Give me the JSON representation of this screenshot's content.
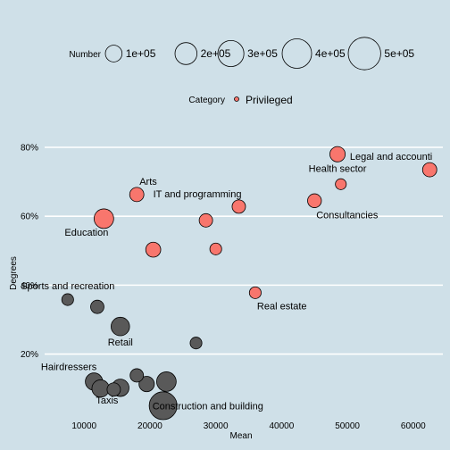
{
  "legends": {
    "size": {
      "title": "Number",
      "entries": [
        {
          "label": "1e+05",
          "value": 100000
        },
        {
          "label": "2e+05",
          "value": 200000
        },
        {
          "label": "3e+05",
          "value": 300000
        },
        {
          "label": "4e+05",
          "value": 400000
        },
        {
          "label": "5e+05",
          "value": 500000
        }
      ]
    },
    "category": {
      "title": "Category",
      "entries": [
        {
          "label": "Privileged",
          "color": "#f8766d"
        }
      ]
    }
  },
  "colors": {
    "background": "#cfe0e8",
    "gridline": "#ffffff",
    "privileged": "#f8766d",
    "other": "#595959",
    "outline": "#000000"
  },
  "chart_data": {
    "type": "scatter",
    "title": "",
    "xlabel": "Mean",
    "ylabel": "Degrees",
    "xlim": [
      4000,
      64500
    ],
    "ylim": [
      0.02,
      0.87
    ],
    "x_ticks": [
      {
        "value": 10000,
        "label": "10000"
      },
      {
        "value": 20000,
        "label": "20000"
      },
      {
        "value": 30000,
        "label": "30000"
      },
      {
        "value": 40000,
        "label": "40000"
      },
      {
        "value": 50000,
        "label": "50000"
      },
      {
        "value": 60000,
        "label": "60000"
      }
    ],
    "y_ticks": [
      {
        "value": 0.2,
        "label": "20%"
      },
      {
        "value": 0.4,
        "label": "40%"
      },
      {
        "value": 0.6,
        "label": "60%"
      },
      {
        "value": 0.8,
        "label": "80%"
      }
    ],
    "grid": "horizontal",
    "legend_position": "top",
    "points": [
      {
        "x": 62500,
        "y": 0.735,
        "size": 65000,
        "privileged": true,
        "label": "Legal and accounti",
        "label_pos": "above-left"
      },
      {
        "x": 48500,
        "y": 0.78,
        "size": 80000,
        "privileged": true,
        "label": "Health sector",
        "label_pos": "below"
      },
      {
        "x": 49000,
        "y": 0.693,
        "size": 30000,
        "privileged": true,
        "label": "",
        "label_pos": ""
      },
      {
        "x": 45000,
        "y": 0.645,
        "size": 60000,
        "privileged": true,
        "label": "Consultancies",
        "label_pos": "below-right"
      },
      {
        "x": 33500,
        "y": 0.628,
        "size": 55000,
        "privileged": true,
        "label": "IT and programming",
        "label_pos": "above-left"
      },
      {
        "x": 28500,
        "y": 0.588,
        "size": 55000,
        "privileged": true,
        "label": "",
        "label_pos": ""
      },
      {
        "x": 18000,
        "y": 0.663,
        "size": 65000,
        "privileged": true,
        "label": "Arts",
        "label_pos": "above-right"
      },
      {
        "x": 13000,
        "y": 0.593,
        "size": 150000,
        "privileged": true,
        "label": "Education",
        "label_pos": "below-left"
      },
      {
        "x": 20500,
        "y": 0.503,
        "size": 75000,
        "privileged": true,
        "label": "",
        "label_pos": ""
      },
      {
        "x": 30000,
        "y": 0.505,
        "size": 38000,
        "privileged": true,
        "label": "",
        "label_pos": ""
      },
      {
        "x": 36000,
        "y": 0.378,
        "size": 38000,
        "privileged": true,
        "label": "Real estate",
        "label_pos": "below-right"
      },
      {
        "x": 7500,
        "y": 0.358,
        "size": 38000,
        "privileged": false,
        "label": "Sports and recreation",
        "label_pos": "above"
      },
      {
        "x": 12000,
        "y": 0.337,
        "size": 55000,
        "privileged": false,
        "label": "",
        "label_pos": ""
      },
      {
        "x": 15500,
        "y": 0.28,
        "size": 130000,
        "privileged": false,
        "label": "Retail",
        "label_pos": "below"
      },
      {
        "x": 27000,
        "y": 0.232,
        "size": 38000,
        "privileged": false,
        "label": "",
        "label_pos": ""
      },
      {
        "x": 11500,
        "y": 0.12,
        "size": 110000,
        "privileged": false,
        "label": "Hairdressers",
        "label_pos": "above-left"
      },
      {
        "x": 12500,
        "y": 0.1,
        "size": 110000,
        "privileged": false,
        "label": "",
        "label_pos": ""
      },
      {
        "x": 14500,
        "y": 0.097,
        "size": 55000,
        "privileged": false,
        "label": "Taxis",
        "label_pos": "below-left"
      },
      {
        "x": 15500,
        "y": 0.102,
        "size": 110000,
        "privileged": false,
        "label": "",
        "label_pos": ""
      },
      {
        "x": 18000,
        "y": 0.138,
        "size": 55000,
        "privileged": false,
        "label": "",
        "label_pos": ""
      },
      {
        "x": 19500,
        "y": 0.113,
        "size": 80000,
        "privileged": false,
        "label": "",
        "label_pos": ""
      },
      {
        "x": 22500,
        "y": 0.12,
        "size": 150000,
        "privileged": false,
        "label": "",
        "label_pos": ""
      },
      {
        "x": 22000,
        "y": 0.05,
        "size": 350000,
        "privileged": false,
        "label": "Construction and building",
        "label_pos": "right"
      }
    ]
  }
}
